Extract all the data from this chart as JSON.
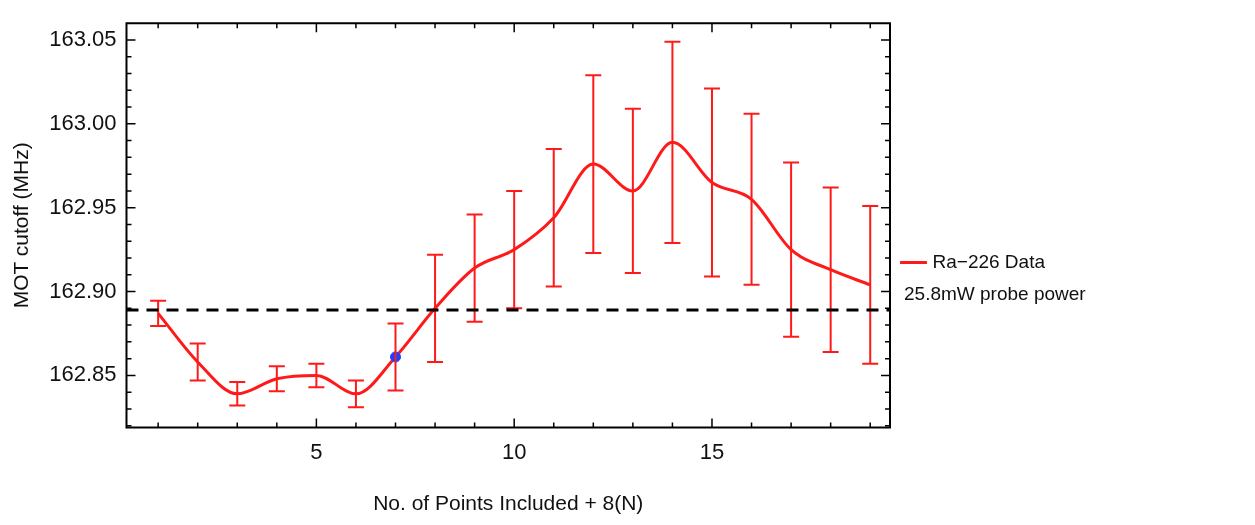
{
  "chart_data": {
    "type": "line",
    "xlabel": "No. of Points Included + 8(N)",
    "ylabel": "MOT cutoff (MHz)",
    "x": [
      1,
      2,
      3,
      4,
      5,
      6,
      7,
      8,
      9,
      10,
      11,
      12,
      13,
      14,
      15,
      16,
      17,
      18,
      19
    ],
    "xlim": [
      0.2,
      19.5
    ],
    "xticks": [
      {
        "value": 1,
        "label": null
      },
      {
        "value": 2,
        "label": null
      },
      {
        "value": 3,
        "label": null
      },
      {
        "value": 4,
        "label": null
      },
      5,
      {
        "value": 6,
        "label": null
      },
      {
        "value": 7,
        "label": null
      },
      {
        "value": 8,
        "label": null
      },
      {
        "value": 9,
        "label": null
      },
      10,
      {
        "value": 11,
        "label": null
      },
      {
        "value": 12,
        "label": null
      },
      {
        "value": 13,
        "label": null
      },
      {
        "value": 14,
        "label": null
      },
      15,
      {
        "value": 16,
        "label": null
      },
      {
        "value": 17,
        "label": null
      },
      {
        "value": 18,
        "label": null
      },
      {
        "value": 19,
        "label": null
      }
    ],
    "ylim": [
      162.819,
      163.06
    ],
    "yticks": [
      {
        "value": 162.82,
        "label": null
      },
      {
        "value": 162.83,
        "label": null
      },
      {
        "value": 162.84,
        "label": null
      },
      162.85,
      {
        "value": 162.86,
        "label": null
      },
      {
        "value": 162.87,
        "label": null
      },
      {
        "value": 162.88,
        "label": null
      },
      {
        "value": 162.89,
        "label": null
      },
      {
        "value": 162.9,
        "label": "162.90"
      },
      {
        "value": 162.91,
        "label": null
      },
      {
        "value": 162.92,
        "label": null
      },
      {
        "value": 162.93,
        "label": null
      },
      {
        "value": 162.94,
        "label": null
      },
      162.95,
      {
        "value": 162.96,
        "label": null
      },
      {
        "value": 162.97,
        "label": null
      },
      {
        "value": 162.98,
        "label": null
      },
      {
        "value": 162.99,
        "label": null
      },
      {
        "value": 163,
        "label": "163.00"
      },
      {
        "value": 163.01,
        "label": null
      },
      {
        "value": 163.02,
        "label": null
      },
      {
        "value": 163.03,
        "label": null
      },
      {
        "value": 163.04,
        "label": null
      },
      163.05
    ],
    "series": [
      {
        "name": "Ra−226 Data",
        "color": "#ff1a1a",
        "marker": "none",
        "line_style": "solid",
        "values": [
          162.887,
          162.858,
          162.839,
          162.848,
          162.85,
          162.839,
          162.861,
          162.89,
          162.914,
          162.925,
          162.944,
          162.976,
          162.96,
          162.989,
          162.965,
          162.955,
          162.925,
          162.913,
          162.904
        ],
        "errors": [
          0.0075,
          0.011,
          0.007,
          0.0075,
          0.007,
          0.008,
          0.02,
          0.032,
          0.032,
          0.035,
          0.041,
          0.053,
          0.049,
          0.06,
          0.056,
          0.051,
          0.052,
          0.049,
          0.047
        ]
      },
      {
        "type": "scatter",
        "x": [
          7
        ],
        "color": "#1f3fff",
        "marker": "circle",
        "values": [
          162.861
        ]
      }
    ],
    "ref_lines": [
      {
        "axis": "y",
        "value": 162.889,
        "color": "#000000",
        "line_style": "dashed"
      }
    ],
    "annotations": [
      "25.8mW probe power"
    ],
    "legend": "right",
    "grid": false
  }
}
